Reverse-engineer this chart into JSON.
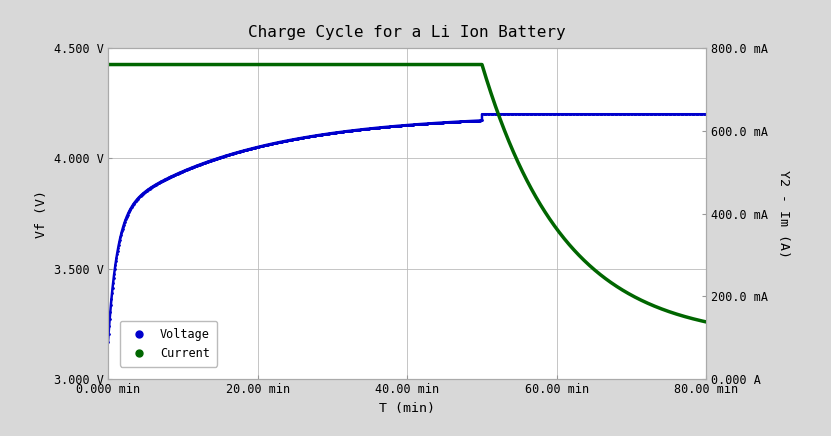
{
  "title": "Charge Cycle for a Li Ion Battery",
  "xlabel": "T (min)",
  "ylabel_left": "Vf (V)",
  "ylabel_right": "Y2 - Im (A)",
  "xlim": [
    0,
    80
  ],
  "ylim_left": [
    3.0,
    4.5
  ],
  "ylim_right": [
    0.0,
    0.8
  ],
  "xticks": [
    0,
    20,
    40,
    60,
    80
  ],
  "xtick_labels": [
    "0.000 min",
    "20.00 min",
    "40.00 min",
    "60.00 min",
    "80.00 min"
  ],
  "yticks_left": [
    3.0,
    3.5,
    4.0,
    4.5
  ],
  "ytick_labels_left": [
    "3.000 V",
    "3.500 V",
    "4.000 V",
    "4.500 V"
  ],
  "yticks_right": [
    0.0,
    0.2,
    0.4,
    0.6,
    0.8
  ],
  "ytick_labels_right": [
    "0.000 A",
    "200.0 mA",
    "400.0 mA",
    "600.0 mA",
    "800.0 mA"
  ],
  "voltage_color": "#0000cc",
  "current_color": "#006600",
  "bg_color": "#d8d8d8",
  "plot_bg_color": "#ffffff",
  "grid_color": "#bbbbbb",
  "legend_voltage": "Voltage",
  "legend_current": "Current",
  "phase1_end": 50.0,
  "v_start": 3.17,
  "v_end": 4.2,
  "v_flat": 4.2,
  "i_constant": 0.76,
  "i_end": 0.095,
  "tau_decay": 11.0,
  "v_tau": 2.5
}
